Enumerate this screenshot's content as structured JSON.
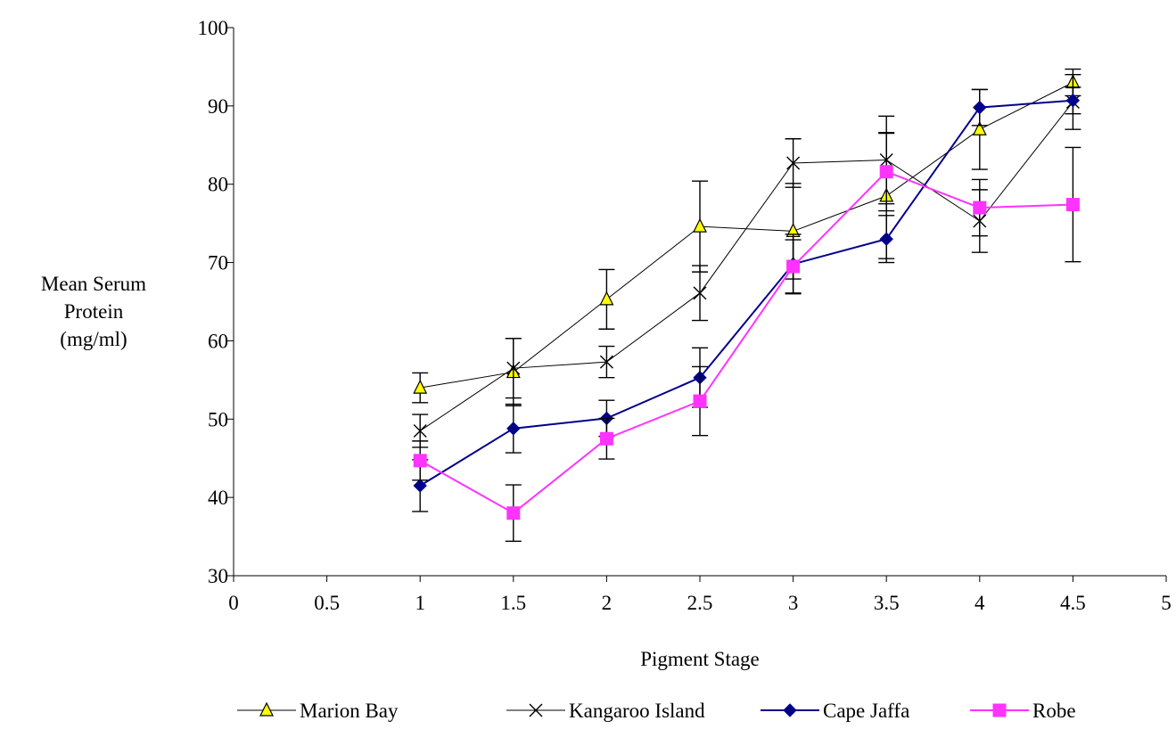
{
  "chart_data": {
    "type": "line",
    "title": "",
    "xlabel": "Pigment Stage",
    "ylabel": [
      "Mean Serum",
      "Protein",
      "(mg/ml)"
    ],
    "xlim": [
      0,
      5
    ],
    "ylim": [
      30,
      100
    ],
    "x_ticks": [
      0,
      0.5,
      1,
      1.5,
      2,
      2.5,
      3,
      3.5,
      4,
      4.5,
      5
    ],
    "x_tick_labels": [
      "0",
      "0.5",
      "1",
      "1.5",
      "2",
      "2.5",
      "3",
      "3.5",
      "4",
      "4.5",
      "5"
    ],
    "y_ticks": [
      30,
      40,
      50,
      60,
      70,
      80,
      90,
      100
    ],
    "y_tick_labels": [
      "30",
      "40",
      "50",
      "60",
      "70",
      "80",
      "90",
      "100"
    ],
    "grid": false,
    "legend_position": "bottom",
    "x": [
      1,
      1.5,
      2,
      2.5,
      3,
      3.5,
      4,
      4.5
    ],
    "series": [
      {
        "name": "Marion Bay",
        "marker": "triangle",
        "line_color": "#000000",
        "marker_fill": "#ffff00",
        "marker_stroke": "#000000",
        "values": [
          54.0,
          56.0,
          65.3,
          74.6,
          74.0,
          78.5,
          87.0,
          93.0
        ],
        "errors": [
          1.9,
          4.3,
          3.8,
          5.8,
          6.1,
          8.0,
          5.1,
          1.7
        ]
      },
      {
        "name": "Kangaroo Island",
        "marker": "x",
        "line_color": "#000000",
        "marker_fill": "none",
        "marker_stroke": "#000000",
        "values": [
          48.5,
          56.5,
          57.3,
          66.1,
          82.7,
          83.1,
          75.3,
          90.5
        ],
        "errors": [
          2.1,
          3.8,
          2.0,
          3.5,
          3.1,
          5.6,
          4.0,
          3.5
        ]
      },
      {
        "name": "Cape Jaffa",
        "marker": "diamond",
        "line_color": "#00008b",
        "marker_fill": "#00008b",
        "marker_stroke": "#00008b",
        "values": [
          41.5,
          48.8,
          50.1,
          55.3,
          69.8,
          73.0,
          89.8,
          90.7
        ],
        "errors": [
          3.3,
          3.1,
          2.3,
          3.8,
          3.8,
          3.0,
          2.3,
          1.7
        ]
      },
      {
        "name": "Robe",
        "marker": "square",
        "line_color": "#ff33ff",
        "marker_fill": "#ff33ff",
        "marker_stroke": "#ff33ff",
        "values": [
          44.7,
          38.0,
          47.5,
          52.3,
          69.5,
          81.6,
          77.0,
          77.4
        ],
        "errors": [
          2.5,
          3.6,
          2.6,
          4.4,
          3.4,
          5.0,
          3.6,
          7.3
        ]
      }
    ]
  }
}
